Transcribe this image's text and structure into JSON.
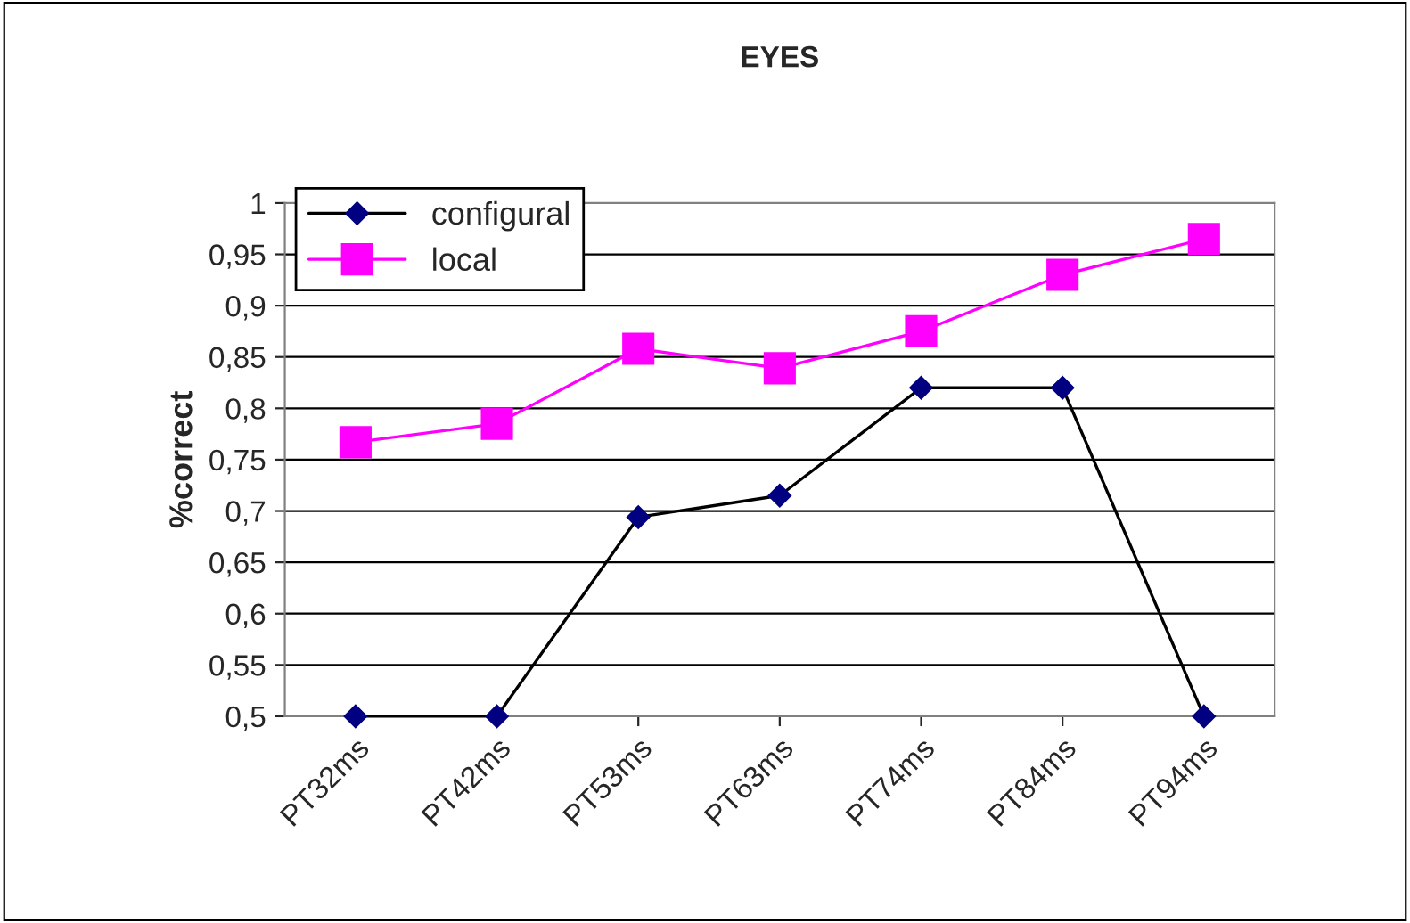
{
  "chart_data": {
    "type": "line",
    "title": "EYES",
    "ylabel": "%correct",
    "categories": [
      "PT32ms",
      "PT42ms",
      "PT53ms",
      "PT63ms",
      "PT74ms",
      "PT84ms",
      "PT94ms"
    ],
    "series": [
      {
        "name": "configural",
        "color": "#000080",
        "marker": "diamond",
        "values": [
          0.5,
          0.5,
          0.694,
          0.715,
          0.82,
          0.82,
          0.5
        ]
      },
      {
        "name": "local",
        "color": "#ff00ff",
        "marker": "square",
        "values": [
          0.767,
          0.785,
          0.858,
          0.839,
          0.875,
          0.93,
          0.965
        ]
      }
    ],
    "ylim": [
      0.5,
      1
    ],
    "yticks": [
      {
        "value": 0.5,
        "label": "0,5"
      },
      {
        "value": 0.55,
        "label": "0,55"
      },
      {
        "value": 0.6,
        "label": "0,6"
      },
      {
        "value": 0.65,
        "label": "0,65"
      },
      {
        "value": 0.7,
        "label": "0,7"
      },
      {
        "value": 0.75,
        "label": "0,75"
      },
      {
        "value": 0.8,
        "label": "0,8"
      },
      {
        "value": 0.85,
        "label": "0,85"
      },
      {
        "value": 0.9,
        "label": "0,9"
      },
      {
        "value": 0.95,
        "label": "0,95"
      },
      1
    ],
    "grid": "y",
    "legend": "top left"
  }
}
